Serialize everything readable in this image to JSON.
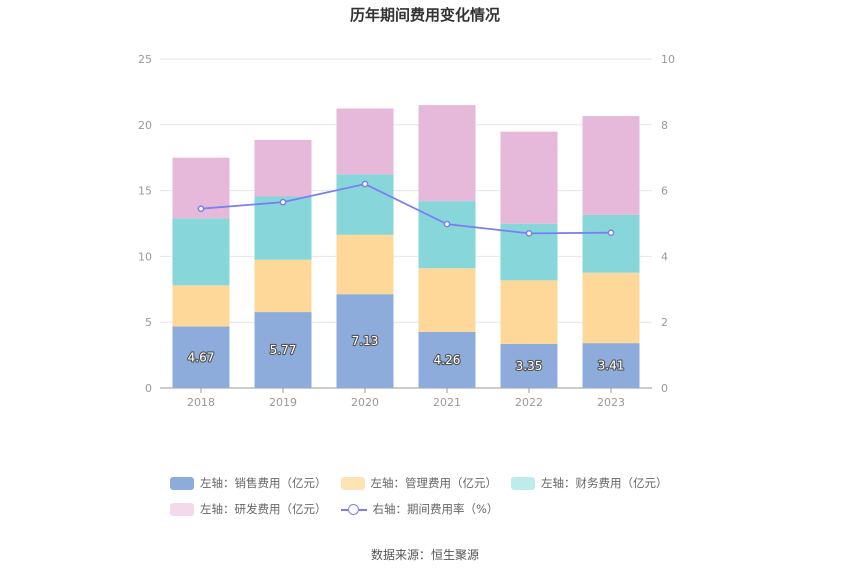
{
  "chart_data": {
    "type": "bar",
    "title": "历年期间费用变化情况",
    "categories": [
      "2018",
      "2019",
      "2020",
      "2021",
      "2022",
      "2023"
    ],
    "ylim_left": [
      0,
      25
    ],
    "ylim_right": [
      0,
      10
    ],
    "yticks_left": [
      "0",
      "5",
      "10",
      "15",
      "20",
      "25"
    ],
    "yticks_right": [
      "0",
      "2",
      "4",
      "6",
      "8",
      "10"
    ],
    "stacked": true,
    "grid": true,
    "legend_position": "bottom",
    "series": [
      {
        "name": "左轴：销售费用（亿元）",
        "axis": "left",
        "type": "bar",
        "color": "#8dacdc",
        "values": [
          4.67,
          5.77,
          7.13,
          4.26,
          3.35,
          3.41
        ],
        "labels": [
          "4.67",
          "5.77",
          "7.13",
          "4.26",
          "3.35",
          "3.41"
        ]
      },
      {
        "name": "左轴：管理费用（亿元）",
        "axis": "left",
        "type": "bar",
        "color": "#fed899",
        "values": [
          3.13,
          3.98,
          4.51,
          4.84,
          4.83,
          5.35
        ]
      },
      {
        "name": "左轴：财务费用（亿元）",
        "axis": "left",
        "type": "bar",
        "color": "#86d6da",
        "values": [
          5.1,
          4.8,
          4.6,
          5.1,
          4.3,
          4.4
        ]
      },
      {
        "name": "左轴：研发费用（亿元）",
        "axis": "left",
        "type": "bar",
        "color": "#e6b8d9",
        "values": [
          4.6,
          4.3,
          5.0,
          7.3,
          7.0,
          7.5
        ]
      },
      {
        "name": "右轴：期间费用率（%）",
        "axis": "right",
        "type": "line",
        "color": "#7b7ff0",
        "values": [
          5.45,
          5.65,
          6.2,
          4.98,
          4.7,
          4.72
        ]
      }
    ],
    "source": "数据来源：恒生聚源"
  },
  "legend_swatch_colors": [
    "#8dacdc",
    "#fee3b5",
    "#c0ebed",
    "#f3d9ec"
  ]
}
